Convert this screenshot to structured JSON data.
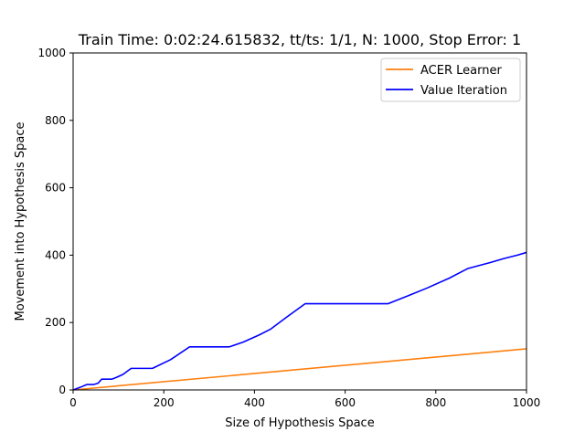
{
  "chart_data": {
    "type": "line",
    "title": "Train Time: 0:02:24.615832, tt/ts: 1/1, N: 1000, Stop Error: 1",
    "xlabel": "Size of Hypothesis Space",
    "ylabel": "Movement into Hypothesis Space",
    "xlim": [
      0,
      1000
    ],
    "ylim": [
      0,
      1000
    ],
    "x_ticks": [
      "0",
      "200",
      "400",
      "600",
      "800",
      "1000"
    ],
    "y_ticks": [
      "0",
      "200",
      "400",
      "600",
      "800",
      "1000"
    ],
    "grid": false,
    "legend_position": "top-right",
    "series": [
      {
        "name": "ACER Learner",
        "color": "#ff7f0e",
        "x": [
          0,
          1000
        ],
        "y": [
          0,
          122
        ]
      },
      {
        "name": "Value Iteration",
        "color": "#0000ff",
        "x": [
          0,
          8,
          16,
          30,
          45,
          55,
          63,
          85,
          95,
          110,
          128,
          150,
          175,
          215,
          257,
          300,
          345,
          375,
          410,
          435,
          470,
          512,
          560,
          600,
          650,
          695,
          740,
          780,
          830,
          870,
          920,
          950,
          980,
          1000
        ],
        "y": [
          0,
          4,
          8,
          16,
          16,
          20,
          32,
          32,
          37,
          46,
          64,
          64,
          64,
          90,
          128,
          128,
          128,
          142,
          163,
          180,
          215,
          256,
          256,
          256,
          256,
          256,
          280,
          302,
          332,
          360,
          378,
          390,
          400,
          408
        ]
      }
    ]
  }
}
